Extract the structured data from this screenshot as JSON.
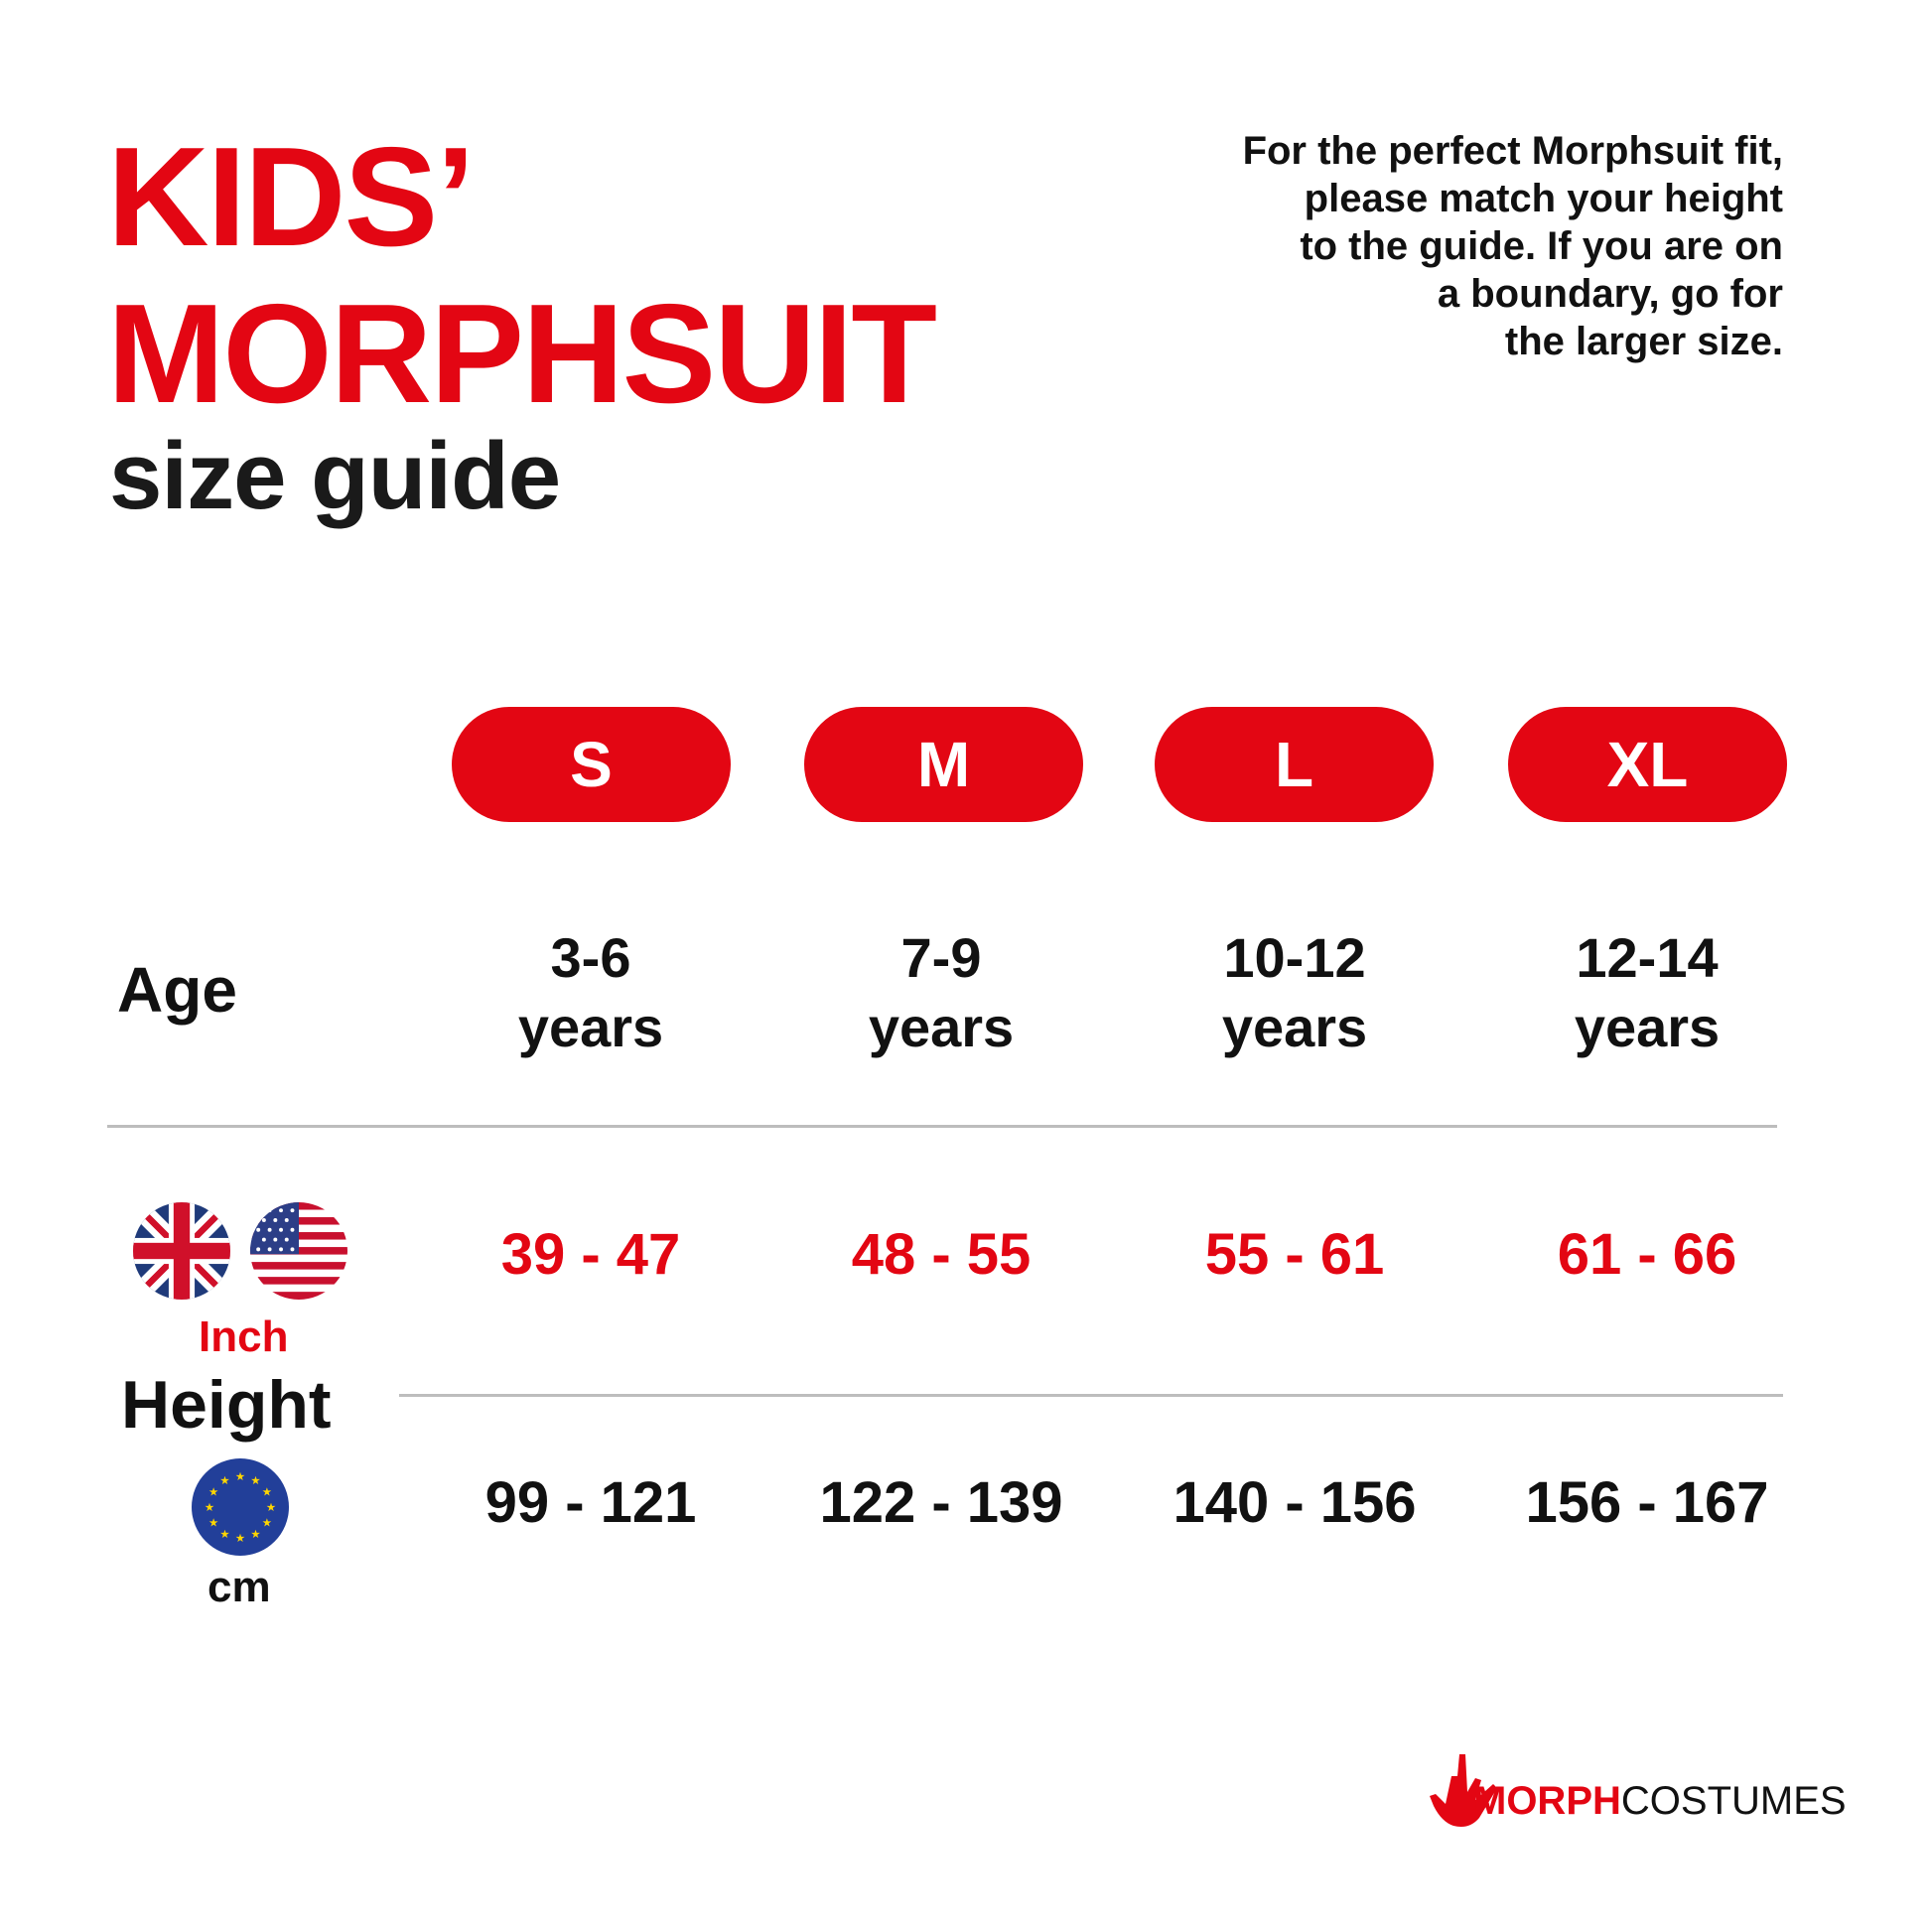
{
  "title": {
    "line1": "KIDS’",
    "line2": "MORPHSUIT",
    "line3": "size guide"
  },
  "intro": [
    "For the perfect Morphsuit fit,",
    "please match your height",
    "to the guide. If you are on",
    "a boundary, go for",
    "the larger size."
  ],
  "sizes": [
    "S",
    "M",
    "L",
    "XL"
  ],
  "age": {
    "label": "Age",
    "values": [
      {
        "range": "3-6",
        "unit": "years"
      },
      {
        "range": "7-9",
        "unit": "years"
      },
      {
        "range": "10-12",
        "unit": "years"
      },
      {
        "range": "12-14",
        "unit": "years"
      }
    ]
  },
  "height": {
    "label": "Height",
    "inch_label": "Inch",
    "cm_label": "cm",
    "inch_values": [
      "39 - 47",
      "48 - 55",
      "55 - 61",
      "61 - 66"
    ],
    "cm_values": [
      "99 - 121",
      "122 - 139",
      "140 - 156",
      "156 - 167"
    ],
    "flags": [
      "uk-flag-icon",
      "us-flag-icon",
      "eu-flag-icon"
    ]
  },
  "logo": {
    "part1": "MORPH",
    "part2": "COSTUMES"
  },
  "colors": {
    "brand_red": "#e30613",
    "text": "#111111",
    "divider": "#bdbdbd"
  }
}
